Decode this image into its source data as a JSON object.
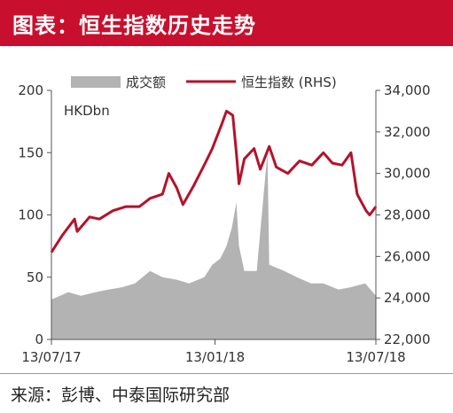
{
  "header": {
    "title": "图表：恒生指数历史走势"
  },
  "footer": {
    "source": "来源：彭博、中泰国际研究部"
  },
  "colors": {
    "title_bg": "#c8102e",
    "index_line": "#b5122a",
    "turnover_area": "#b3b3b3"
  },
  "chart_data": {
    "type": "area+line",
    "unit_label": "HKDbn",
    "legend": [
      "成交额",
      "恒生指数 (RHS)"
    ],
    "legend_position": "top",
    "x_ticks": [
      "13/07/17",
      "13/01/18",
      "13/07/18"
    ],
    "x_range": [
      "2017-07-13",
      "2018-07-13"
    ],
    "left_axis": {
      "ylim": [
        0,
        200
      ],
      "ticks": [
        "0",
        "50",
        "100",
        "150",
        "200"
      ]
    },
    "right_axis": {
      "ylim": [
        22000,
        34000
      ],
      "ticks": [
        "22,000",
        "24,000",
        "26,000",
        "28,000",
        "30,000",
        "32,000",
        "34,000"
      ]
    },
    "series": [
      {
        "name": "成交额",
        "axis": "left",
        "type": "area",
        "x": [
          "2017-07-13",
          "2017-08-01",
          "2017-08-15",
          "2017-09-01",
          "2017-09-15",
          "2017-10-01",
          "2017-10-15",
          "2017-11-01",
          "2017-11-15",
          "2017-12-01",
          "2017-12-15",
          "2018-01-01",
          "2018-01-10",
          "2018-01-19",
          "2018-01-26",
          "2018-02-01",
          "2018-02-06",
          "2018-02-09",
          "2018-02-15",
          "2018-03-01",
          "2018-03-13",
          "2018-03-15",
          "2018-04-01",
          "2018-04-15",
          "2018-05-01",
          "2018-05-15",
          "2018-06-01",
          "2018-06-15",
          "2018-07-01",
          "2018-07-13"
        ],
        "values": [
          32,
          38,
          35,
          38,
          40,
          42,
          45,
          55,
          50,
          48,
          45,
          50,
          60,
          65,
          75,
          90,
          110,
          75,
          55,
          55,
          150,
          60,
          55,
          50,
          45,
          45,
          40,
          42,
          45,
          35
        ]
      },
      {
        "name": "恒生指数 (RHS)",
        "axis": "right",
        "type": "line",
        "x": [
          "2017-07-13",
          "2017-07-25",
          "2017-08-08",
          "2017-08-11",
          "2017-08-25",
          "2017-09-05",
          "2017-09-20",
          "2017-10-05",
          "2017-10-20",
          "2017-11-01",
          "2017-11-15",
          "2017-11-22",
          "2017-12-01",
          "2017-12-08",
          "2017-12-20",
          "2018-01-02",
          "2018-01-10",
          "2018-01-20",
          "2018-01-26",
          "2018-02-02",
          "2018-02-06",
          "2018-02-09",
          "2018-02-15",
          "2018-02-26",
          "2018-03-05",
          "2018-03-15",
          "2018-03-23",
          "2018-04-05",
          "2018-04-18",
          "2018-05-02",
          "2018-05-15",
          "2018-05-25",
          "2018-06-05",
          "2018-06-15",
          "2018-06-22",
          "2018-07-02",
          "2018-07-06",
          "2018-07-13"
        ],
        "values": [
          26200,
          27000,
          27800,
          27200,
          27900,
          27800,
          28200,
          28400,
          28400,
          28800,
          29000,
          30000,
          29300,
          28500,
          29400,
          30500,
          31200,
          32300,
          33000,
          32800,
          31000,
          29500,
          30700,
          31200,
          30200,
          31300,
          30300,
          30000,
          30600,
          30400,
          31000,
          30500,
          30400,
          31000,
          29000,
          28200,
          28000,
          28400
        ]
      }
    ]
  }
}
